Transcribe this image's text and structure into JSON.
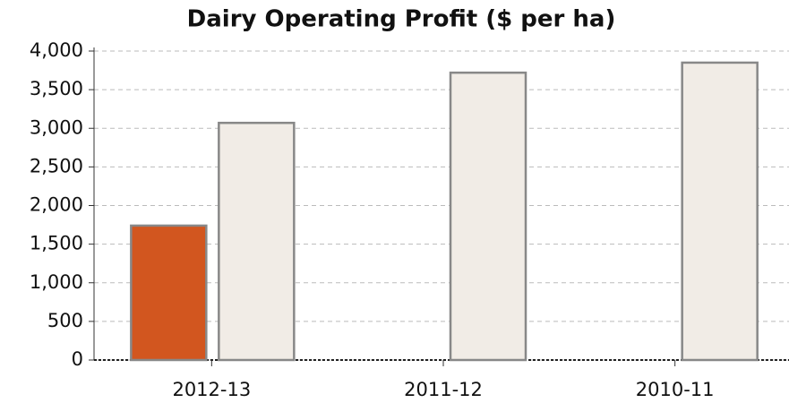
{
  "chart_data": {
    "type": "bar",
    "title": "Dairy Operating Profit ($ per ha)",
    "categories": [
      "2012-13",
      "2011-12",
      "2010-11"
    ],
    "series": [
      {
        "color": "#d2561f",
        "values": [
          1740,
          null,
          null
        ]
      },
      {
        "color": "#f1ece6",
        "values": [
          3070,
          3720,
          3850
        ]
      }
    ],
    "ylim": [
      0,
      4000
    ],
    "yticks": [
      0,
      500,
      {
        "value": 1000,
        "label": "1,000"
      },
      {
        "value": 1500,
        "label": "1,500"
      },
      {
        "value": 2000,
        "label": "2,000"
      },
      {
        "value": 2500,
        "label": "2,500"
      },
      {
        "value": 3000,
        "label": "3,000"
      },
      {
        "value": 3500,
        "label": "3,500"
      },
      {
        "value": 4000,
        "label": "4,000"
      }
    ],
    "grid": true
  }
}
